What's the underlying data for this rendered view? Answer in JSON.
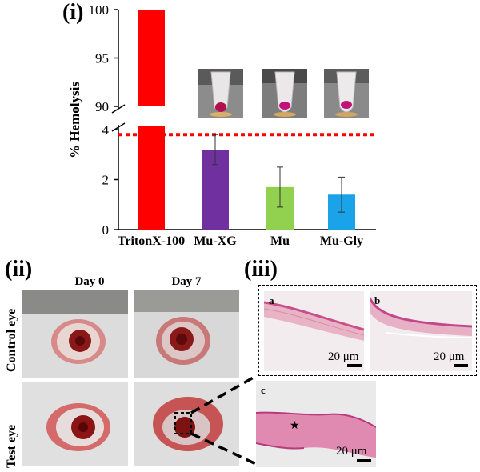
{
  "panels": {
    "i": "(i)",
    "ii": "(ii)",
    "iii": "(iii)"
  },
  "chart_data": {
    "type": "bar",
    "ylabel": "% Hemolysis",
    "categories": [
      "TritonX-100",
      "Mu-XG",
      "Mu",
      "Mu-Gly"
    ],
    "values": [
      100,
      3.2,
      1.7,
      1.4
    ],
    "errors": [
      0,
      0.6,
      0.8,
      0.7
    ],
    "colors": [
      "#ff0000",
      "#7030a0",
      "#92d050",
      "#1aa3e8"
    ],
    "ylim_lower": [
      0,
      4
    ],
    "ylim_upper": [
      90,
      100
    ],
    "yticks_lower": [
      "0",
      "2",
      "4"
    ],
    "yticks_upper": [
      "90",
      "95",
      "100"
    ],
    "broken_axis": true,
    "threshold_line": {
      "value": 3.8,
      "color": "#ff0000",
      "style": "dotted"
    }
  },
  "panel_ii": {
    "col_headers": [
      "Day 0",
      "Day 7"
    ],
    "row_headers": [
      "Control eye",
      "Test eye"
    ]
  },
  "panel_iii": {
    "labels": [
      "a",
      "b",
      "c"
    ],
    "scale": "20 μm",
    "marker": "★"
  }
}
